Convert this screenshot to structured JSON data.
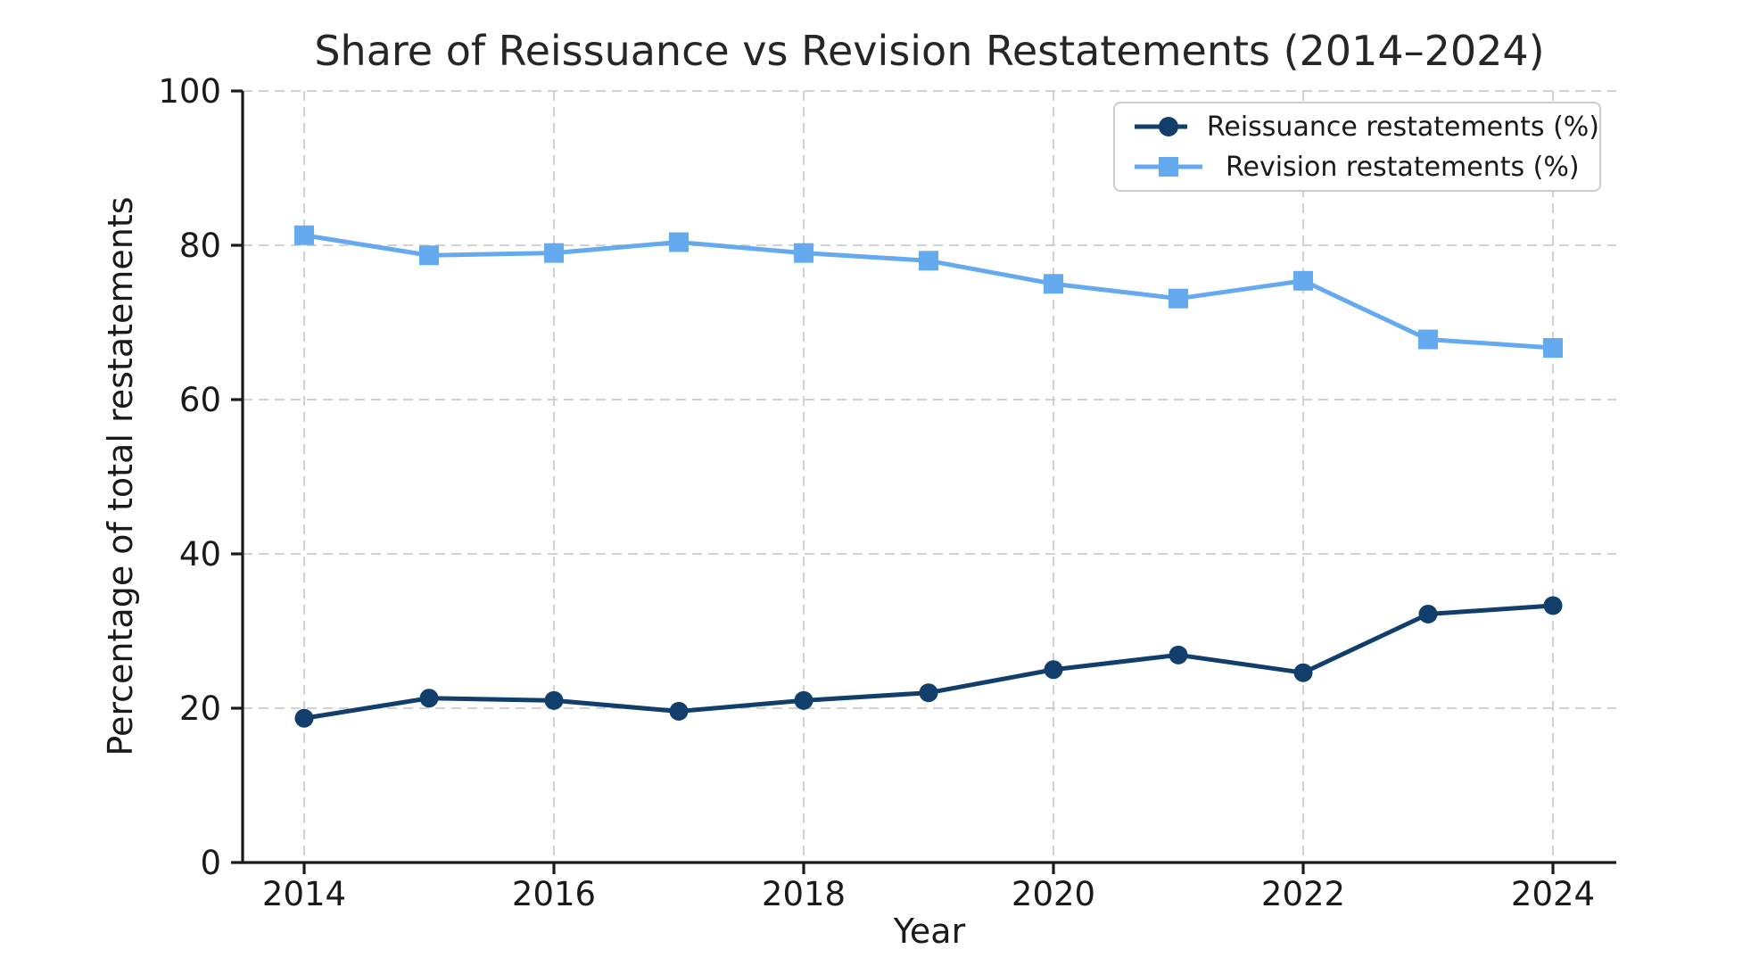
{
  "title": "Share of Reissuance vs Revision Restatements (2014–2024)",
  "axes": {
    "xlabel": "Year",
    "ylabel": "Percentage of total restatements"
  },
  "colors": {
    "background": "#ffffff",
    "text": "#1a1a1a",
    "axis": "#1a1a1a",
    "grid": "#cccccc",
    "reissuance": "#123e6b",
    "revision": "#65aaef"
  },
  "chart_data": {
    "type": "line",
    "title": "Share of Reissuance vs Revision Restatements (2014–2024)",
    "xlabel": "Year",
    "ylabel": "Percentage of total restatements",
    "x": [
      2014,
      2015,
      2016,
      2017,
      2018,
      2019,
      2020,
      2021,
      2022,
      2023,
      2024
    ],
    "xticks": [
      2014,
      2016,
      2018,
      2020,
      2022,
      2024
    ],
    "yticks": [
      0,
      20,
      40,
      60,
      80,
      100
    ],
    "ylim": [
      0,
      100
    ],
    "grid": true,
    "grid_style": "dashed",
    "legend_position": "upper right",
    "series": [
      {
        "name": "Reissuance restatements (%)",
        "marker": "circle",
        "color": "#123e6b",
        "values": [
          18.7,
          21.3,
          21.0,
          19.6,
          21.0,
          22.0,
          25.0,
          26.9,
          24.6,
          32.2,
          33.3
        ]
      },
      {
        "name": "Revision restatements (%)",
        "marker": "square",
        "color": "#65aaef",
        "values": [
          81.3,
          78.7,
          79.0,
          80.4,
          79.0,
          78.0,
          75.0,
          73.1,
          75.4,
          67.8,
          66.7
        ]
      }
    ]
  }
}
